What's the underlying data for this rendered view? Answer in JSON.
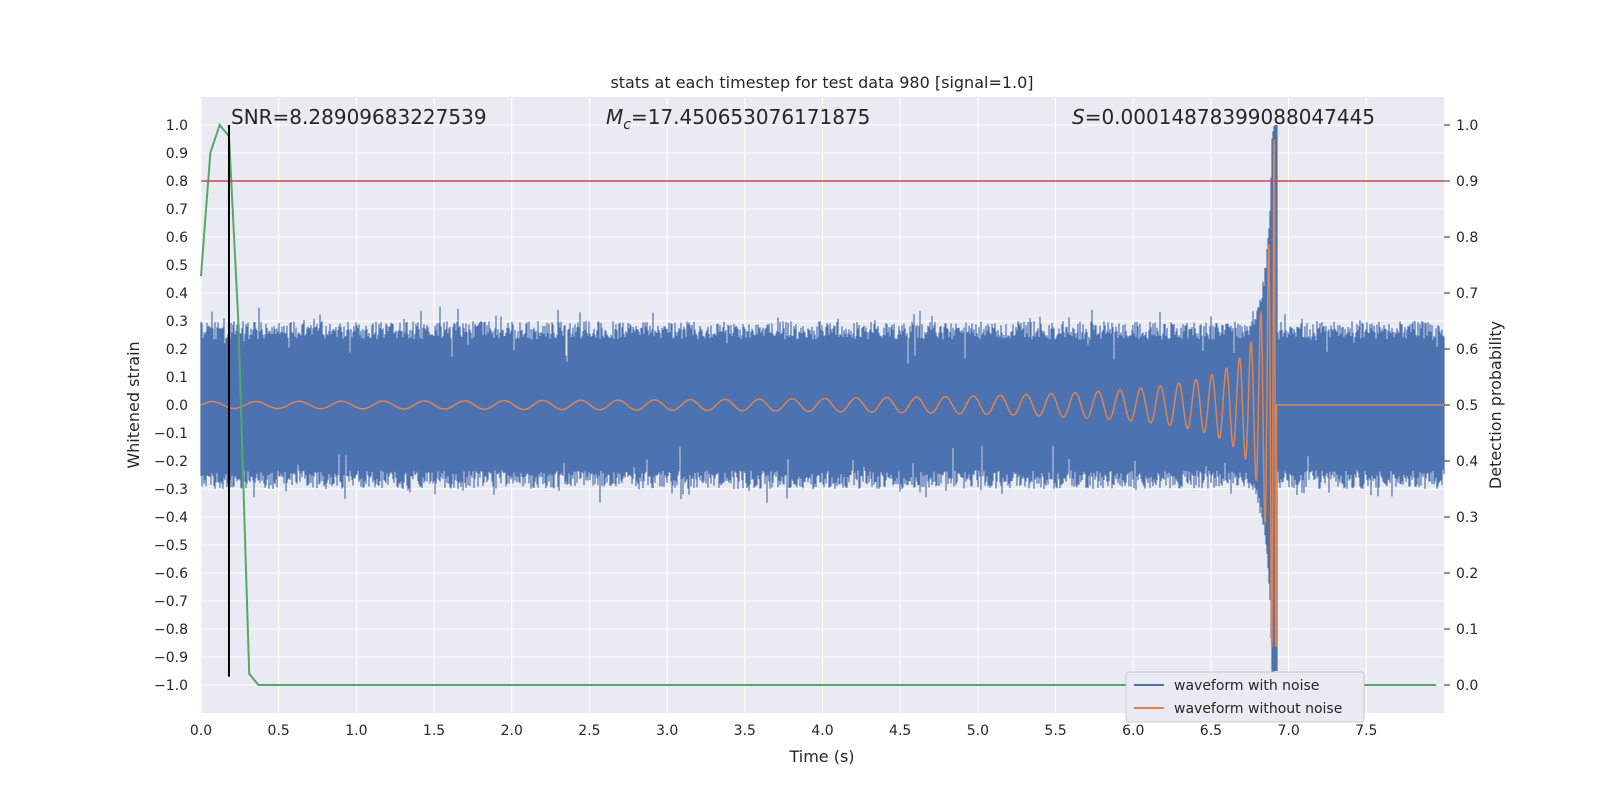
{
  "chart_data": {
    "type": "line",
    "title": "stats at each timestep for test data 980 [signal=1.0]",
    "xlabel": "Time (s)",
    "ylabel": "Whitened strain",
    "y2label": "Detection probability",
    "xlim": [
      0.0,
      8.0
    ],
    "ylim": [
      -1.1,
      1.1
    ],
    "y2lim": [
      -0.05,
      1.05
    ],
    "xticks": [
      "0.0",
      "0.5",
      "1.0",
      "1.5",
      "2.0",
      "2.5",
      "3.0",
      "3.5",
      "4.0",
      "4.5",
      "5.0",
      "5.5",
      "6.0",
      "6.5",
      "7.0",
      "7.5"
    ],
    "yticks": [
      "1.0",
      "0.9",
      "0.8",
      "0.7",
      "0.6",
      "0.5",
      "0.4",
      "0.3",
      "0.2",
      "0.1",
      "0.0",
      "−0.1",
      "−0.2",
      "−0.3",
      "−0.4",
      "−0.5",
      "−0.6",
      "−0.7",
      "−0.8",
      "−0.9",
      "−1.0"
    ],
    "y2ticks": [
      "1.0",
      "0.9",
      "0.8",
      "0.7",
      "0.6",
      "0.5",
      "0.4",
      "0.3",
      "0.2",
      "0.1",
      "0.0"
    ],
    "grid": true,
    "legend_position": "bottom-right",
    "annotations": {
      "snr": "SNR=8.28909683227539",
      "mc_symbol": "M",
      "mc_sub": "c",
      "mc_value": "=17.450653076171875",
      "s_symbol": "S",
      "s_value": "=0.00014878399088047445"
    },
    "series": [
      {
        "name": "waveform with noise",
        "color": "#4c72b0",
        "axis": "left",
        "description_values": {
          "noise_envelope": 0.3,
          "merger_time": 6.92,
          "peak_max": 1.0,
          "peak_min": -0.95
        }
      },
      {
        "name": "waveform without noise",
        "color": "#dd8452",
        "axis": "left",
        "chirp": {
          "end_time": 6.92,
          "amp_start": 0.012,
          "amp_peak": 0.95,
          "freq_start": 7.0,
          "freq_end": 40.0
        }
      },
      {
        "name": "",
        "color": "#55a868",
        "axis": "right",
        "x": [
          0.0,
          0.06,
          0.12,
          0.18,
          0.24,
          0.31,
          0.37,
          0.43,
          7.95
        ],
        "y": [
          0.73,
          0.95,
          1.0,
          0.98,
          0.65,
          0.02,
          0.0,
          0.0,
          0.0
        ]
      }
    ],
    "hlines": [
      {
        "y": 0.8,
        "axis": "left",
        "color": "#c44e52"
      }
    ],
    "vlines": [
      {
        "x": 0.18,
        "color": "#000000",
        "y_from": -0.97,
        "y_to": 1.0
      }
    ]
  }
}
